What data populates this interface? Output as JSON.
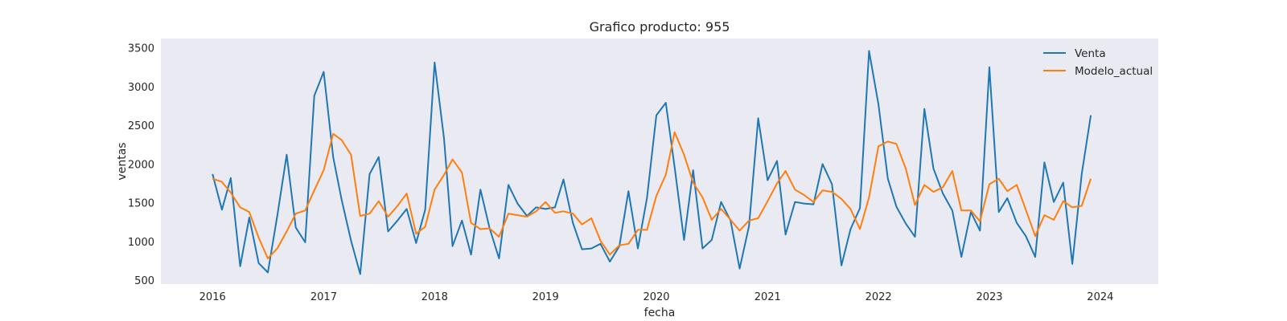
{
  "chart_data": {
    "type": "line",
    "title": "Grafico producto: 955",
    "xlabel": "fecha",
    "ylabel": "ventas",
    "ylim": [
      450,
      3620
    ],
    "y_ticks": [
      500,
      1000,
      1500,
      2000,
      2500,
      3000,
      3500
    ],
    "x_ticks": [
      "2016",
      "2017",
      "2018",
      "2019",
      "2020",
      "2021",
      "2022",
      "2023",
      "2024"
    ],
    "x_range": [
      "2015-07-15",
      "2024-07-10"
    ],
    "grid": false,
    "background": "#eaeaf2",
    "legend_position": "top-right",
    "x": [
      "2016-01",
      "2016-02",
      "2016-03",
      "2016-04",
      "2016-05",
      "2016-06",
      "2016-07",
      "2016-08",
      "2016-09",
      "2016-10",
      "2016-11",
      "2016-12",
      "2017-01",
      "2017-02",
      "2017-03",
      "2017-04",
      "2017-05",
      "2017-06",
      "2017-07",
      "2017-08",
      "2017-09",
      "2017-10",
      "2017-11",
      "2017-12",
      "2018-01",
      "2018-02",
      "2018-03",
      "2018-04",
      "2018-05",
      "2018-06",
      "2018-07",
      "2018-08",
      "2018-09",
      "2018-10",
      "2018-11",
      "2018-12",
      "2019-01",
      "2019-02",
      "2019-03",
      "2019-04",
      "2019-05",
      "2019-06",
      "2019-07",
      "2019-08",
      "2019-09",
      "2019-10",
      "2019-11",
      "2019-12",
      "2020-01",
      "2020-02",
      "2020-03",
      "2020-04",
      "2020-05",
      "2020-06",
      "2020-07",
      "2020-08",
      "2020-09",
      "2020-10",
      "2020-11",
      "2020-12",
      "2021-01",
      "2021-02",
      "2021-03",
      "2021-04",
      "2021-05",
      "2021-06",
      "2021-07",
      "2021-08",
      "2021-09",
      "2021-10",
      "2021-11",
      "2021-12",
      "2022-01",
      "2022-02",
      "2022-03",
      "2022-04",
      "2022-05",
      "2022-06",
      "2022-07",
      "2022-08",
      "2022-09",
      "2022-10",
      "2022-11",
      "2022-12",
      "2023-01",
      "2023-02",
      "2023-03",
      "2023-04",
      "2023-05",
      "2023-06",
      "2023-07",
      "2023-08",
      "2023-09",
      "2023-10",
      "2023-11",
      "2023-12"
    ],
    "series": [
      {
        "name": "Venta",
        "color": "#1f77b4",
        "values": [
          1870,
          1410,
          1820,
          680,
          1310,
          720,
          600,
          1330,
          2120,
          1180,
          990,
          2880,
          3190,
          2090,
          1540,
          1010,
          580,
          1870,
          2090,
          1130,
          1270,
          1420,
          980,
          1410,
          3310,
          2330,
          940,
          1270,
          830,
          1670,
          1170,
          780,
          1730,
          1490,
          1330,
          1440,
          1420,
          1440,
          1800,
          1240,
          900,
          910,
          970,
          740,
          940,
          1650,
          910,
          1560,
          2630,
          2790,
          1960,
          1020,
          1920,
          910,
          1020,
          1510,
          1270,
          650,
          1200,
          2590,
          1790,
          2040,
          1090,
          1510,
          1490,
          1480,
          2000,
          1740,
          690,
          1160,
          1430,
          3460,
          2770,
          1810,
          1450,
          1230,
          1060,
          2710,
          1940,
          1620,
          1400,
          800,
          1380,
          1140,
          3250,
          1380,
          1560,
          1240,
          1070,
          800,
          2020,
          1510,
          1760,
          710,
          1870,
          2630
        ]
      },
      {
        "name": "Modelo_actual",
        "color": "#ff7f0e",
        "values": [
          1810,
          1770,
          1630,
          1440,
          1380,
          1050,
          780,
          910,
          1130,
          1360,
          1400,
          1660,
          1920,
          2390,
          2310,
          2120,
          1330,
          1360,
          1520,
          1320,
          1460,
          1620,
          1100,
          1190,
          1670,
          1860,
          2060,
          1890,
          1240,
          1160,
          1170,
          1060,
          1360,
          1340,
          1320,
          1390,
          1510,
          1370,
          1390,
          1360,
          1220,
          1300,
          1010,
          830,
          950,
          970,
          1150,
          1150,
          1590,
          1860,
          2410,
          2120,
          1760,
          1570,
          1280,
          1420,
          1280,
          1140,
          1270,
          1300,
          1520,
          1750,
          1910,
          1670,
          1600,
          1510,
          1660,
          1640,
          1550,
          1420,
          1160,
          1570,
          2230,
          2290,
          2260,
          1940,
          1470,
          1730,
          1640,
          1700,
          1910,
          1400,
          1400,
          1260,
          1740,
          1810,
          1650,
          1730,
          1410,
          1070,
          1340,
          1280,
          1520,
          1440,
          1460,
          1810
        ]
      }
    ]
  }
}
